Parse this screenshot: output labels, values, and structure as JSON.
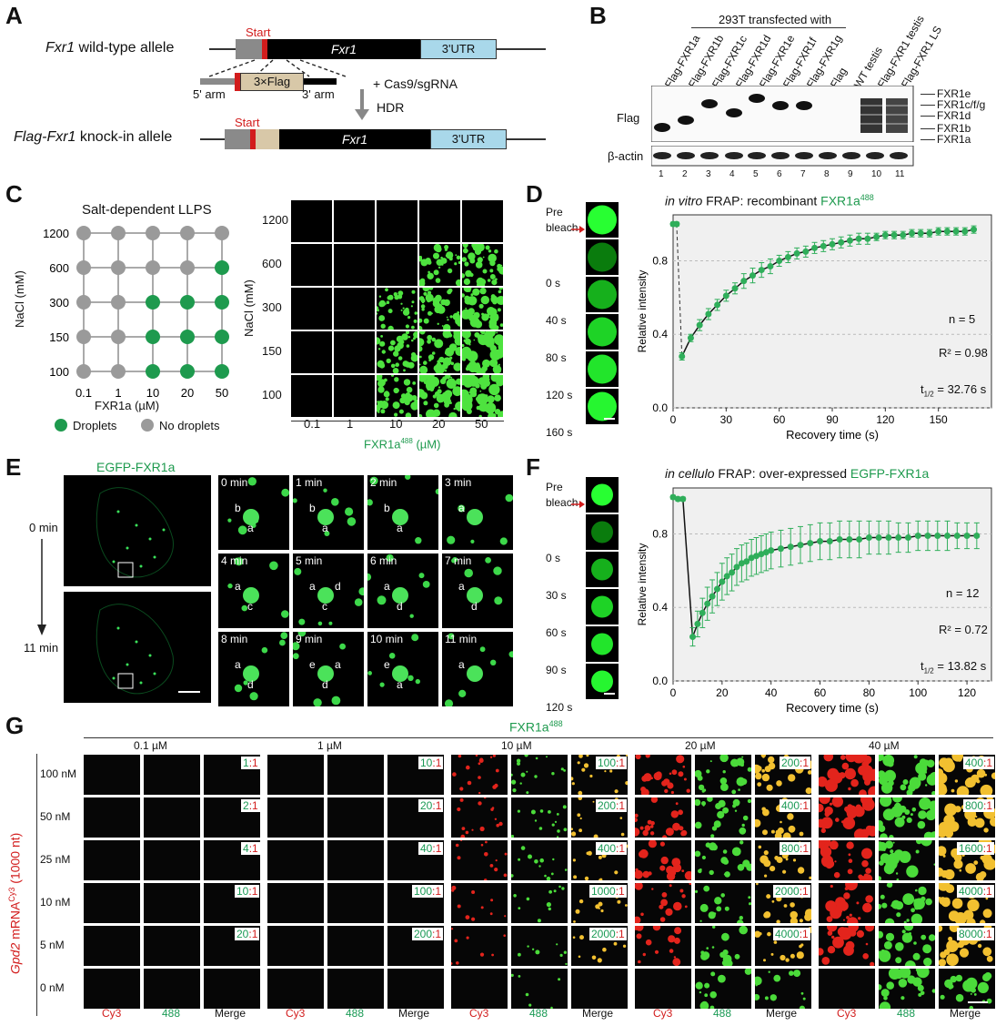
{
  "panels": {
    "A": "A",
    "B": "B",
    "C": "C",
    "D": "D",
    "E": "E",
    "F": "F",
    "G": "G"
  },
  "colors": {
    "green": "#2fae5a",
    "red": "#d21c1c",
    "gray": "#9a9a9a",
    "black": "#000000",
    "utr": "#a9d8ea",
    "flag_box": "#d8c8a8"
  },
  "a": {
    "wt_label_italic": "Fxr1",
    "wt_label": " wild-type allele",
    "start": "Start",
    "gene": "Fxr1",
    "utr": "3'UTR",
    "flag_insert": "3×Flag",
    "arm5": "5' arm",
    "arm3": "3' arm",
    "cas9": "+ Cas9/sgRNA",
    "hdr": "HDR",
    "ki_label_italic": "Flag-Fxr1",
    "ki_label": " knock-in allele"
  },
  "b": {
    "header": "293T transfected with",
    "lanes": [
      "Flag-FXR1a",
      "Flag-FXR1b",
      "Flag-FXR1c",
      "Flag-FXR1d",
      "Flag-FXR1e",
      "Flag-FXR1f",
      "Flag-FXR1g",
      "Flag",
      "WT testis",
      "Flag-FXR1 testis",
      "Flag-FXR1 LS"
    ],
    "lane_numbers": [
      "1",
      "2",
      "3",
      "4",
      "5",
      "6",
      "7",
      "8",
      "9",
      "10",
      "11"
    ],
    "row_flag": "Flag",
    "row_actin": "β-actin",
    "isoforms": [
      "FXR1e",
      "FXR1c/f/g",
      "FXR1d",
      "FXR1b",
      "FXR1a"
    ]
  },
  "c": {
    "title": "Salt-dependent LLPS",
    "y_label": "NaCl (mM)",
    "x_label": "FXR1a (µM)",
    "nacl": [
      "1200",
      "600",
      "300",
      "150",
      "100"
    ],
    "fxr": [
      "0.1",
      "1",
      "10",
      "20",
      "50"
    ],
    "droplets_grid": [
      [
        0,
        0,
        0,
        0,
        0
      ],
      [
        0,
        0,
        0,
        0,
        1
      ],
      [
        0,
        0,
        1,
        1,
        1
      ],
      [
        0,
        0,
        1,
        1,
        1
      ],
      [
        0,
        0,
        1,
        1,
        1
      ]
    ],
    "legend_droplets": "Droplets",
    "legend_no": "No droplets",
    "img_y_label": "NaCl (mM)",
    "img_x_label": "FXR1a",
    "img_x_sup": "488",
    "img_x_unit": " (µM)"
  },
  "d": {
    "title_italic": "in vitro",
    "title": " FRAP: recombinant ",
    "title_green": "FXR1a",
    "title_sup": "488",
    "times": [
      "Pre",
      "bleach",
      "0 s",
      "40 s",
      "80 s",
      "120 s",
      "160 s"
    ],
    "n": "n = 5",
    "r2": "R² = 0.98",
    "t_half_prefix": "t",
    "t_half_sub": "1/2",
    "t_half_val": " = 32.76 s"
  },
  "e": {
    "label": "EGFP-FXR1a",
    "t0": "0 min",
    "t11": "11 min",
    "tiles": [
      {
        "time": "0 min",
        "labels": [
          "b",
          "a"
        ]
      },
      {
        "time": "1 min",
        "labels": [
          "b",
          "a"
        ]
      },
      {
        "time": "2 min",
        "labels": [
          "b",
          "a"
        ]
      },
      {
        "time": "3 min",
        "labels": [
          "a"
        ]
      },
      {
        "time": "4 min",
        "labels": [
          "a",
          "c"
        ]
      },
      {
        "time": "5 min",
        "labels": [
          "a",
          "c",
          "d"
        ]
      },
      {
        "time": "6 min",
        "labels": [
          "a",
          "d"
        ]
      },
      {
        "time": "7 min",
        "labels": [
          "a",
          "d"
        ]
      },
      {
        "time": "8 min",
        "labels": [
          "a",
          "d"
        ]
      },
      {
        "time": "9 min",
        "labels": [
          "e",
          "d",
          "a"
        ]
      },
      {
        "time": "10 min",
        "labels": [
          "e",
          "a"
        ]
      },
      {
        "time": "11 min",
        "labels": [
          "a"
        ]
      }
    ]
  },
  "f": {
    "title_italic": "in cellulo",
    "title": " FRAP: over-expressed ",
    "title_green": "EGFP-FXR1a",
    "times": [
      "Pre",
      "bleach",
      "0 s",
      "30 s",
      "60 s",
      "90 s",
      "120 s"
    ],
    "n": "n = 12",
    "r2": "R² = 0.72",
    "t_half_prefix": "t",
    "t_half_sub": "1/2",
    "t_half_val": " = 13.82 s"
  },
  "chart_data": [
    {
      "type": "scatter",
      "title": "in vitro FRAP: recombinant FXR1a488",
      "xlabel": "Recovery time (s)",
      "ylabel": "Relative intensity",
      "xlim": [
        0,
        180
      ],
      "ylim": [
        0,
        1.05
      ],
      "xticks": [
        0,
        30,
        60,
        90,
        120,
        150
      ],
      "yticks": [
        0.0,
        0.4,
        0.8
      ],
      "series": [
        {
          "x": [
            0,
            2,
            5,
            10,
            15,
            20,
            25,
            30,
            35,
            40,
            45,
            50,
            55,
            60,
            65,
            70,
            75,
            80,
            85,
            90,
            95,
            100,
            105,
            110,
            115,
            120,
            125,
            130,
            135,
            140,
            145,
            150,
            155,
            160,
            165,
            170
          ],
          "y": [
            1.0,
            1.0,
            0.28,
            0.38,
            0.45,
            0.51,
            0.56,
            0.61,
            0.65,
            0.69,
            0.72,
            0.75,
            0.77,
            0.8,
            0.82,
            0.84,
            0.85,
            0.87,
            0.88,
            0.89,
            0.9,
            0.91,
            0.92,
            0.92,
            0.93,
            0.94,
            0.94,
            0.94,
            0.95,
            0.95,
            0.95,
            0.96,
            0.96,
            0.96,
            0.96,
            0.97
          ],
          "err": [
            0.01,
            0.01,
            0.02,
            0.02,
            0.03,
            0.03,
            0.03,
            0.03,
            0.03,
            0.04,
            0.04,
            0.04,
            0.04,
            0.03,
            0.03,
            0.03,
            0.03,
            0.03,
            0.03,
            0.03,
            0.03,
            0.03,
            0.03,
            0.03,
            0.02,
            0.02,
            0.02,
            0.02,
            0.02,
            0.02,
            0.02,
            0.02,
            0.02,
            0.02,
            0.02,
            0.02
          ]
        }
      ]
    },
    {
      "type": "scatter",
      "title": "in cellulo FRAP: over-expressed EGFP-FXR1a",
      "xlabel": "Recovery time (s)",
      "ylabel": "Relative intensity",
      "xlim": [
        0,
        130
      ],
      "ylim": [
        0,
        1.05
      ],
      "xticks": [
        0,
        20,
        40,
        60,
        80,
        100,
        120
      ],
      "yticks": [
        0.0,
        0.4,
        0.8
      ],
      "series": [
        {
          "x": [
            0,
            2,
            4,
            8,
            10,
            12,
            14,
            16,
            18,
            20,
            22,
            24,
            26,
            28,
            30,
            32,
            34,
            36,
            38,
            40,
            44,
            48,
            52,
            56,
            60,
            64,
            68,
            72,
            76,
            80,
            84,
            88,
            92,
            96,
            100,
            104,
            108,
            112,
            116,
            120,
            124
          ],
          "y": [
            1.0,
            0.99,
            0.99,
            0.24,
            0.31,
            0.37,
            0.42,
            0.46,
            0.5,
            0.54,
            0.57,
            0.59,
            0.62,
            0.64,
            0.65,
            0.67,
            0.68,
            0.69,
            0.7,
            0.71,
            0.72,
            0.73,
            0.74,
            0.75,
            0.76,
            0.76,
            0.77,
            0.77,
            0.77,
            0.78,
            0.78,
            0.78,
            0.78,
            0.78,
            0.79,
            0.79,
            0.79,
            0.79,
            0.79,
            0.79,
            0.79
          ],
          "err": [
            0.01,
            0.01,
            0.01,
            0.05,
            0.07,
            0.08,
            0.09,
            0.09,
            0.09,
            0.1,
            0.1,
            0.1,
            0.1,
            0.1,
            0.1,
            0.1,
            0.1,
            0.1,
            0.1,
            0.1,
            0.1,
            0.1,
            0.1,
            0.1,
            0.1,
            0.1,
            0.1,
            0.1,
            0.1,
            0.09,
            0.09,
            0.09,
            0.08,
            0.08,
            0.08,
            0.08,
            0.08,
            0.08,
            0.07,
            0.07,
            0.07
          ]
        }
      ]
    }
  ],
  "g": {
    "header": "FXR1a",
    "header_sup": "488",
    "y_label_italic": "Gpd2",
    "y_label": " mRNA",
    "y_label_sup": "Cy3",
    "y_label_tail": " (1000 nt)",
    "concs": [
      "0.1 µM",
      "1 µM",
      "10 µM",
      "20 µM",
      "40 µM"
    ],
    "rows": [
      "100 nM",
      "50 nM",
      "25 nM",
      "10 nM",
      "5 nM",
      "0 nM"
    ],
    "channels": [
      "Cy3",
      "488",
      "Merge"
    ],
    "ratios": [
      [
        [
          "1",
          ":1"
        ],
        [
          "10",
          ":1"
        ],
        [
          "100",
          ":1"
        ],
        [
          "200",
          ":1"
        ],
        [
          "400",
          ":1"
        ]
      ],
      [
        [
          "2",
          ":1"
        ],
        [
          "20",
          ":1"
        ],
        [
          "200",
          ":1"
        ],
        [
          "400",
          ":1"
        ],
        [
          "800",
          ":1"
        ]
      ],
      [
        [
          "4",
          ":1"
        ],
        [
          "40",
          ":1"
        ],
        [
          "400",
          ":1"
        ],
        [
          "800",
          ":1"
        ],
        [
          "1600",
          ":1"
        ]
      ],
      [
        [
          "10",
          ":1"
        ],
        [
          "100",
          ":1"
        ],
        [
          "1000",
          ":1"
        ],
        [
          "2000",
          ":1"
        ],
        [
          "4000",
          ":1"
        ]
      ],
      [
        [
          "20",
          ":1"
        ],
        [
          "200",
          ":1"
        ],
        [
          "2000",
          ":1"
        ],
        [
          "4000",
          ":1"
        ],
        [
          "8000",
          ":1"
        ]
      ]
    ]
  }
}
